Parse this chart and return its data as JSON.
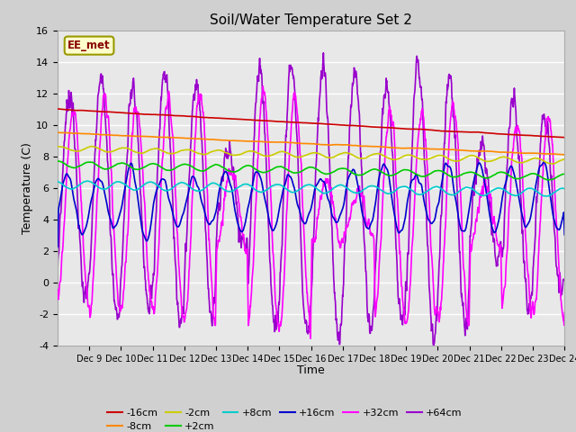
{
  "title": "Soil/Water Temperature Set 2",
  "xlabel": "Time",
  "ylabel": "Temperature (C)",
  "ylim": [
    -4,
    16
  ],
  "n_days": 16,
  "pts_per_day": 96,
  "x_tick_labels": [
    "Dec 9",
    "Dec 10",
    "Dec 11",
    "Dec 12",
    "Dec 13",
    "Dec 14",
    "Dec 15",
    "Dec 16",
    "Dec 17",
    "Dec 18",
    "Dec 19",
    "Dec 20",
    "Dec 21",
    "Dec 22",
    "Dec 23",
    "Dec 24"
  ],
  "series": {
    "-16cm": {
      "color": "#cc0000",
      "lw": 1.2
    },
    "-8cm": {
      "color": "#ff8800",
      "lw": 1.2
    },
    "-2cm": {
      "color": "#cccc00",
      "lw": 1.2
    },
    "+2cm": {
      "color": "#00cc00",
      "lw": 1.2
    },
    "+8cm": {
      "color": "#00cccc",
      "lw": 1.2
    },
    "+16cm": {
      "color": "#0000cc",
      "lw": 1.2
    },
    "+32cm": {
      "color": "#ff00ff",
      "lw": 1.2
    },
    "+64cm": {
      "color": "#9900cc",
      "lw": 1.2
    }
  },
  "label_box_text": "EE_met",
  "label_box_color": "#ffffcc",
  "label_box_border": "#999900",
  "fig_bg": "#d0d0d0",
  "plot_bg": "#e8e8e8",
  "grid_color": "#ffffff"
}
